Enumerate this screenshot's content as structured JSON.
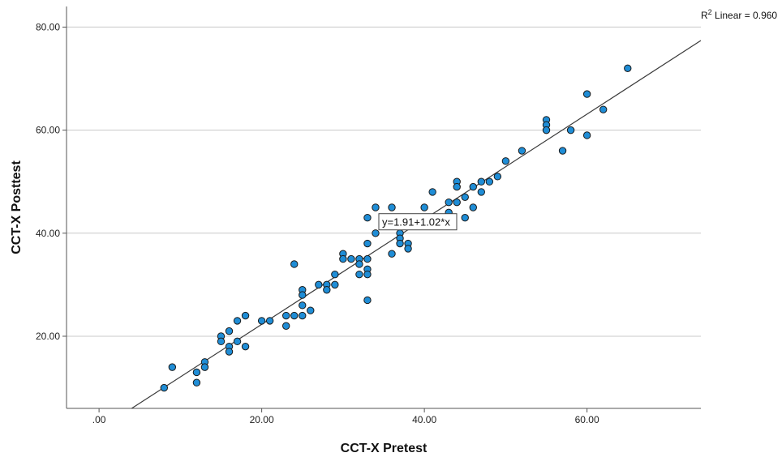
{
  "chart_data": {
    "type": "scatter",
    "xlabel": "CCT-X Pretest",
    "ylabel": "CCT-X Posttest",
    "xlim": [
      -4,
      74
    ],
    "ylim": [
      6,
      84
    ],
    "x_ticks": [
      0,
      20,
      40,
      60
    ],
    "x_tick_labels": [
      ".00",
      "20.00",
      "40.00",
      "60.00"
    ],
    "y_ticks": [
      20,
      40,
      60,
      80
    ],
    "y_tick_labels": [
      "20.00",
      "40.00",
      "60.00",
      "80.00"
    ],
    "grid": "horizontal",
    "marker_color": "#1f8dd6",
    "marker_edge_color": "#1a1a1a",
    "fit_line": {
      "intercept": 1.91,
      "slope": 1.02,
      "equation_label": "y=1.91+1.02*x",
      "r2_prefix": "R",
      "r2_superscript": "2",
      "r2_suffix": " Linear = 0.960"
    },
    "points": [
      {
        "x": 8,
        "y": 10
      },
      {
        "x": 9,
        "y": 14
      },
      {
        "x": 12,
        "y": 13
      },
      {
        "x": 12,
        "y": 11
      },
      {
        "x": 13,
        "y": 15
      },
      {
        "x": 13,
        "y": 14
      },
      {
        "x": 15,
        "y": 20
      },
      {
        "x": 15,
        "y": 19
      },
      {
        "x": 16,
        "y": 21
      },
      {
        "x": 16,
        "y": 18
      },
      {
        "x": 16,
        "y": 17
      },
      {
        "x": 17,
        "y": 23
      },
      {
        "x": 17,
        "y": 19
      },
      {
        "x": 18,
        "y": 24
      },
      {
        "x": 18,
        "y": 18
      },
      {
        "x": 20,
        "y": 23
      },
      {
        "x": 21,
        "y": 23
      },
      {
        "x": 23,
        "y": 24
      },
      {
        "x": 23,
        "y": 22
      },
      {
        "x": 24,
        "y": 34
      },
      {
        "x": 24,
        "y": 24
      },
      {
        "x": 25,
        "y": 29
      },
      {
        "x": 25,
        "y": 28
      },
      {
        "x": 25,
        "y": 26
      },
      {
        "x": 25,
        "y": 24
      },
      {
        "x": 26,
        "y": 25
      },
      {
        "x": 27,
        "y": 30
      },
      {
        "x": 28,
        "y": 30
      },
      {
        "x": 28,
        "y": 29
      },
      {
        "x": 29,
        "y": 32
      },
      {
        "x": 29,
        "y": 30
      },
      {
        "x": 30,
        "y": 36
      },
      {
        "x": 30,
        "y": 35
      },
      {
        "x": 31,
        "y": 35
      },
      {
        "x": 32,
        "y": 35
      },
      {
        "x": 32,
        "y": 34
      },
      {
        "x": 32,
        "y": 32
      },
      {
        "x": 33,
        "y": 43
      },
      {
        "x": 33,
        "y": 38
      },
      {
        "x": 33,
        "y": 35
      },
      {
        "x": 33,
        "y": 33
      },
      {
        "x": 33,
        "y": 32
      },
      {
        "x": 33,
        "y": 27
      },
      {
        "x": 34,
        "y": 45
      },
      {
        "x": 34,
        "y": 40
      },
      {
        "x": 36,
        "y": 45
      },
      {
        "x": 36,
        "y": 36
      },
      {
        "x": 37,
        "y": 40
      },
      {
        "x": 37,
        "y": 39
      },
      {
        "x": 37,
        "y": 38
      },
      {
        "x": 38,
        "y": 38
      },
      {
        "x": 38,
        "y": 37
      },
      {
        "x": 40,
        "y": 45
      },
      {
        "x": 41,
        "y": 48
      },
      {
        "x": 43,
        "y": 46
      },
      {
        "x": 43,
        "y": 44
      },
      {
        "x": 44,
        "y": 50
      },
      {
        "x": 44,
        "y": 49
      },
      {
        "x": 44,
        "y": 46
      },
      {
        "x": 45,
        "y": 47
      },
      {
        "x": 45,
        "y": 43
      },
      {
        "x": 46,
        "y": 49
      },
      {
        "x": 46,
        "y": 45
      },
      {
        "x": 47,
        "y": 50
      },
      {
        "x": 47,
        "y": 48
      },
      {
        "x": 48,
        "y": 50
      },
      {
        "x": 49,
        "y": 51
      },
      {
        "x": 50,
        "y": 54
      },
      {
        "x": 52,
        "y": 56
      },
      {
        "x": 55,
        "y": 62
      },
      {
        "x": 55,
        "y": 61
      },
      {
        "x": 55,
        "y": 60
      },
      {
        "x": 57,
        "y": 56
      },
      {
        "x": 58,
        "y": 60
      },
      {
        "x": 60,
        "y": 67
      },
      {
        "x": 60,
        "y": 59
      },
      {
        "x": 62,
        "y": 64
      },
      {
        "x": 65,
        "y": 72
      }
    ]
  }
}
